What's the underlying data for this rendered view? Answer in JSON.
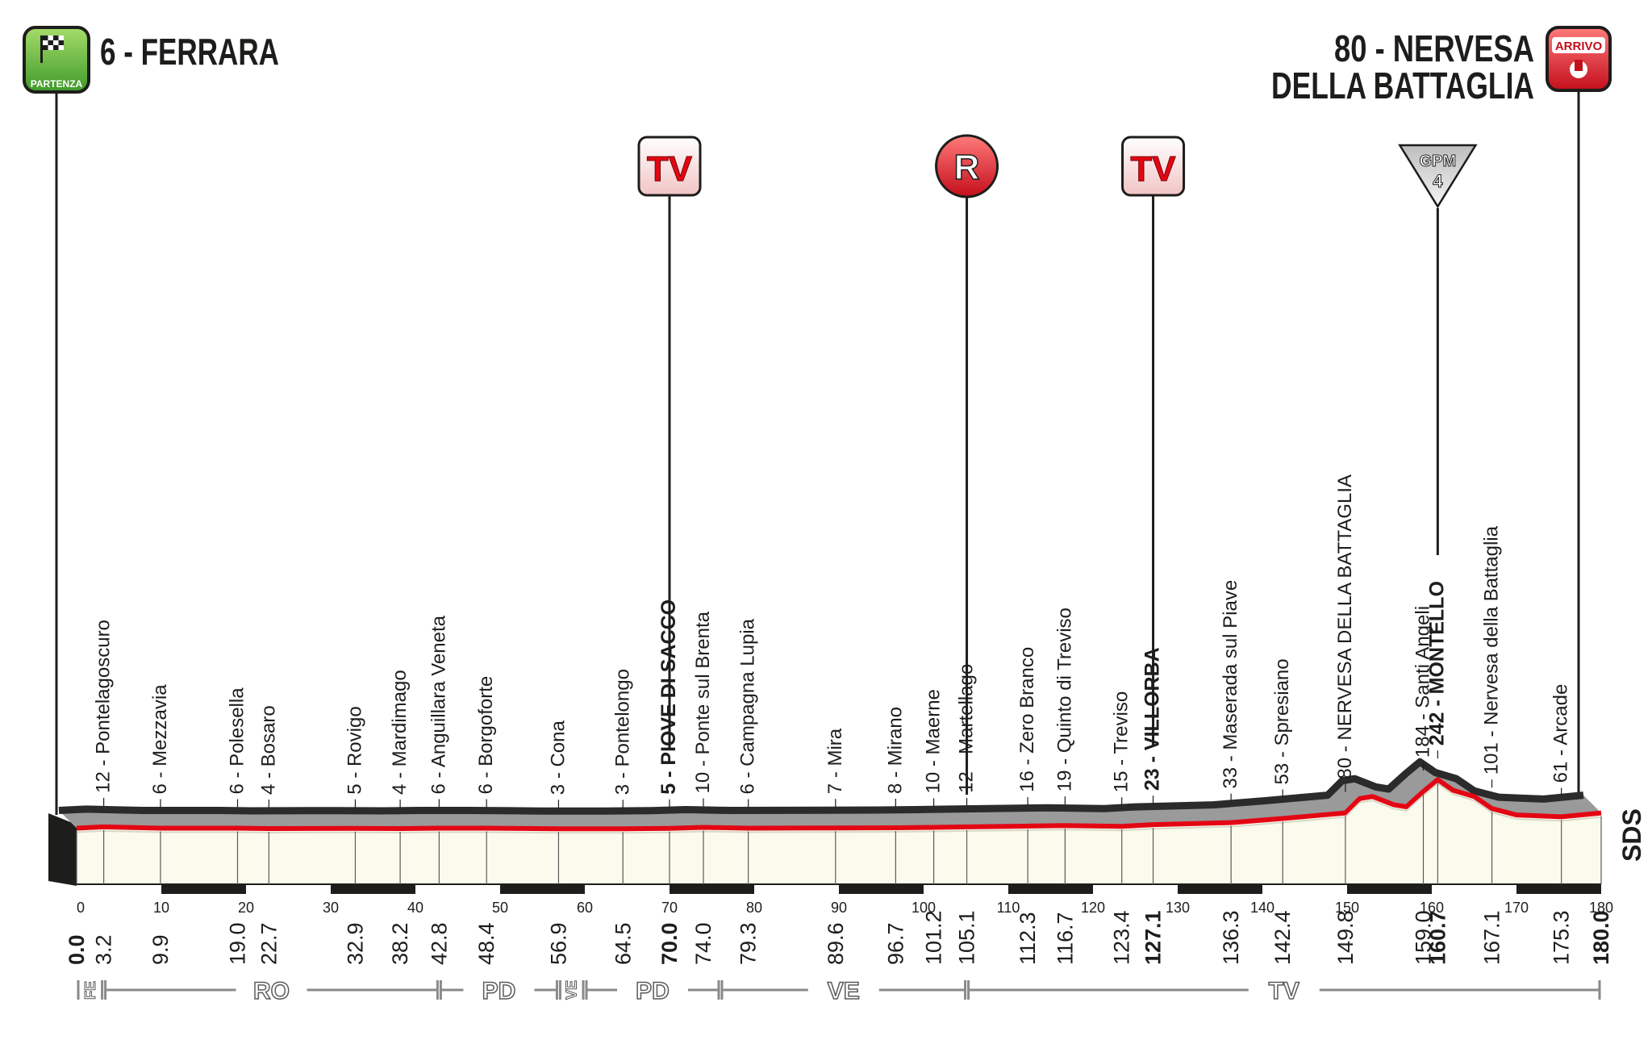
{
  "start": {
    "badge_text": "PARTENZA",
    "label": "6 - FERRARA"
  },
  "finish": {
    "badge_text": "ARRIVO",
    "label_line1": "80 - NERVESA",
    "label_line2": "DELLA BATTAGLIA"
  },
  "markers": [
    {
      "type": "tv",
      "text": "TV",
      "km": 70.0
    },
    {
      "type": "ravito",
      "text": "R",
      "km": 105.1
    },
    {
      "type": "tv",
      "text": "TV",
      "km": 127.1
    },
    {
      "type": "gpm",
      "text": "GPM",
      "category": "4",
      "km": 160.7
    }
  ],
  "chart_data": {
    "type": "area",
    "title": "6 - FERRARA → 80 - NERVESA DELLA BATTAGLIA",
    "xlabel": "",
    "ylabel": "",
    "xlim": [
      0,
      180
    ],
    "x_ticks": [
      0,
      10,
      20,
      30,
      40,
      50,
      60,
      70,
      80,
      90,
      100,
      110,
      120,
      130,
      140,
      150,
      160,
      170,
      180
    ],
    "elevation_profile": [
      {
        "km": 0.0,
        "alt": 6
      },
      {
        "km": 3.2,
        "alt": 12
      },
      {
        "km": 9.9,
        "alt": 6
      },
      {
        "km": 19.0,
        "alt": 6
      },
      {
        "km": 22.7,
        "alt": 4
      },
      {
        "km": 32.9,
        "alt": 5
      },
      {
        "km": 38.2,
        "alt": 4
      },
      {
        "km": 42.8,
        "alt": 6
      },
      {
        "km": 48.4,
        "alt": 6
      },
      {
        "km": 56.9,
        "alt": 3
      },
      {
        "km": 64.5,
        "alt": 3
      },
      {
        "km": 70.0,
        "alt": 5
      },
      {
        "km": 74.0,
        "alt": 10
      },
      {
        "km": 79.3,
        "alt": 6
      },
      {
        "km": 89.6,
        "alt": 7
      },
      {
        "km": 96.7,
        "alt": 8
      },
      {
        "km": 101.2,
        "alt": 10
      },
      {
        "km": 105.1,
        "alt": 12
      },
      {
        "km": 112.3,
        "alt": 16
      },
      {
        "km": 116.7,
        "alt": 19
      },
      {
        "km": 123.4,
        "alt": 15
      },
      {
        "km": 127.1,
        "alt": 23
      },
      {
        "km": 136.3,
        "alt": 33
      },
      {
        "km": 142.4,
        "alt": 53
      },
      {
        "km": 149.8,
        "alt": 80
      },
      {
        "km": 151.5,
        "alt": 150
      },
      {
        "km": 153.0,
        "alt": 160
      },
      {
        "km": 155.5,
        "alt": 120
      },
      {
        "km": 157.0,
        "alt": 110
      },
      {
        "km": 159.0,
        "alt": 184
      },
      {
        "km": 160.7,
        "alt": 242
      },
      {
        "km": 162.5,
        "alt": 190
      },
      {
        "km": 165.0,
        "alt": 160
      },
      {
        "km": 167.1,
        "alt": 101
      },
      {
        "km": 170.0,
        "alt": 70
      },
      {
        "km": 175.3,
        "alt": 61
      },
      {
        "km": 180.0,
        "alt": 80
      }
    ],
    "points": [
      {
        "km": 0.0,
        "label": "",
        "major": true
      },
      {
        "km": 3.2,
        "label": "12 - Pontelagoscuro",
        "major": false
      },
      {
        "km": 9.9,
        "label": "6 - Mezzavia",
        "major": false
      },
      {
        "km": 19.0,
        "label": "6 - Polesella",
        "major": false
      },
      {
        "km": 22.7,
        "label": "4 - Bosaro",
        "major": false
      },
      {
        "km": 32.9,
        "label": "5 - Rovigo",
        "major": false
      },
      {
        "km": 38.2,
        "label": "4 - Mardimago",
        "major": false
      },
      {
        "km": 42.8,
        "label": "6 - Anguillara Veneta",
        "major": false
      },
      {
        "km": 48.4,
        "label": "6 - Borgoforte",
        "major": false
      },
      {
        "km": 56.9,
        "label": "3 - Cona",
        "major": false
      },
      {
        "km": 64.5,
        "label": "3 - Pontelongo",
        "major": false
      },
      {
        "km": 70.0,
        "label": "5 - PIOVE DI SACCO",
        "major": true
      },
      {
        "km": 74.0,
        "label": "10 - Ponte sul Brenta",
        "major": false
      },
      {
        "km": 79.3,
        "label": "6 - Campagna Lupia",
        "major": false
      },
      {
        "km": 89.6,
        "label": "7 - Mira",
        "major": false
      },
      {
        "km": 96.7,
        "label": "8 - Mirano",
        "major": false
      },
      {
        "km": 101.2,
        "label": "10 - Maerne",
        "major": false
      },
      {
        "km": 105.1,
        "label": "12 - Martellago",
        "major": false
      },
      {
        "km": 112.3,
        "label": "16 - Zero Branco",
        "major": false
      },
      {
        "km": 116.7,
        "label": "19 - Quinto di Treviso",
        "major": false
      },
      {
        "km": 123.4,
        "label": "15 - Treviso",
        "major": false
      },
      {
        "km": 127.1,
        "label": "23 - VILLORBA",
        "major": true
      },
      {
        "km": 136.3,
        "label": "33 - Maserada sul Piave",
        "major": false
      },
      {
        "km": 142.4,
        "label": "53 - Spresiano",
        "major": false
      },
      {
        "km": 149.8,
        "label": "80 - NERVESA DELLA BATTAGLIA",
        "major": false
      },
      {
        "km": 159.0,
        "label": "184 - Santi Angeli",
        "major": false
      },
      {
        "km": 160.7,
        "label": "242 - MONTELLO",
        "major": true
      },
      {
        "km": 167.1,
        "label": "101 - Nervesa della Battaglia",
        "major": false
      },
      {
        "km": 175.3,
        "label": "61 - Arcade",
        "major": false
      },
      {
        "km": 180.0,
        "label": "",
        "major": true
      }
    ],
    "provinces": [
      {
        "name": "FE",
        "from": 0.0,
        "to": 3.2
      },
      {
        "name": "RO",
        "from": 3.2,
        "to": 42.8
      },
      {
        "name": "PD",
        "from": 42.8,
        "to": 56.9
      },
      {
        "name": "VE",
        "from": 56.9,
        "to": 60.0
      },
      {
        "name": "PD",
        "from": 60.0,
        "to": 76.0
      },
      {
        "name": "VE",
        "from": 76.0,
        "to": 105.1
      },
      {
        "name": "TV",
        "from": 105.1,
        "to": 180.0
      }
    ],
    "logo_text": "SDS"
  }
}
